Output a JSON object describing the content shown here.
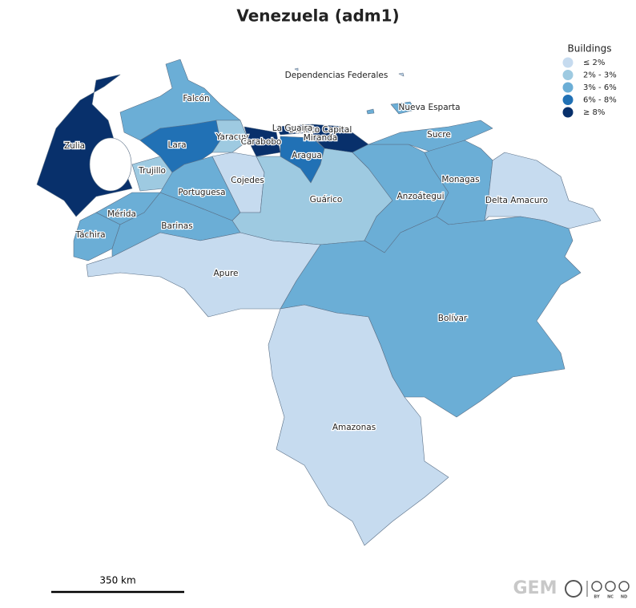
{
  "title": "Venezuela (adm1)",
  "legend": {
    "title": "Buildings",
    "items": [
      {
        "label": "≤ 2%",
        "color": "#c6dbef"
      },
      {
        "label": "2% - 3%",
        "color": "#9ecae1"
      },
      {
        "label": "3% - 6%",
        "color": "#6baed6"
      },
      {
        "label": "6% - 8%",
        "color": "#2171b5"
      },
      {
        "label": "≥ 8%",
        "color": "#08306b"
      }
    ]
  },
  "regions": [
    {
      "name": "Zulia",
      "color": "#08306b"
    },
    {
      "name": "Falcón",
      "color": "#6baed6"
    },
    {
      "name": "Lara",
      "color": "#2171b5"
    },
    {
      "name": "Yaracuy",
      "color": "#9ecae1"
    },
    {
      "name": "Carabobo",
      "color": "#08306b"
    },
    {
      "name": "Distrito Capital",
      "color": "#08306b"
    },
    {
      "name": "La Guaira",
      "color": "#08306b"
    },
    {
      "name": "Miranda",
      "color": "#08306b"
    },
    {
      "name": "Aragua",
      "color": "#2171b5"
    },
    {
      "name": "Trujillo",
      "color": "#9ecae1"
    },
    {
      "name": "Mérida",
      "color": "#6baed6"
    },
    {
      "name": "Táchira",
      "color": "#6baed6"
    },
    {
      "name": "Barinas",
      "color": "#6baed6"
    },
    {
      "name": "Portuguesa",
      "color": "#6baed6"
    },
    {
      "name": "Cojedes",
      "color": "#c6dbef"
    },
    {
      "name": "Guárico",
      "color": "#9ecae1"
    },
    {
      "name": "Anzoátegui",
      "color": "#6baed6"
    },
    {
      "name": "Sucre",
      "color": "#6baed6"
    },
    {
      "name": "Monagas",
      "color": "#6baed6"
    },
    {
      "name": "Delta Amacuro",
      "color": "#c6dbef"
    },
    {
      "name": "Bolívar",
      "color": "#6baed6"
    },
    {
      "name": "Apure",
      "color": "#c6dbef"
    },
    {
      "name": "Amazonas",
      "color": "#c6dbef"
    },
    {
      "name": "Nueva Esparta",
      "color": "#6baed6"
    },
    {
      "name": "Dependencias Federales",
      "color": "#c6dbef"
    }
  ],
  "scale_bar": "350 km",
  "logo": "GEM",
  "license_labels": [
    "BY",
    "NC",
    "ND"
  ]
}
